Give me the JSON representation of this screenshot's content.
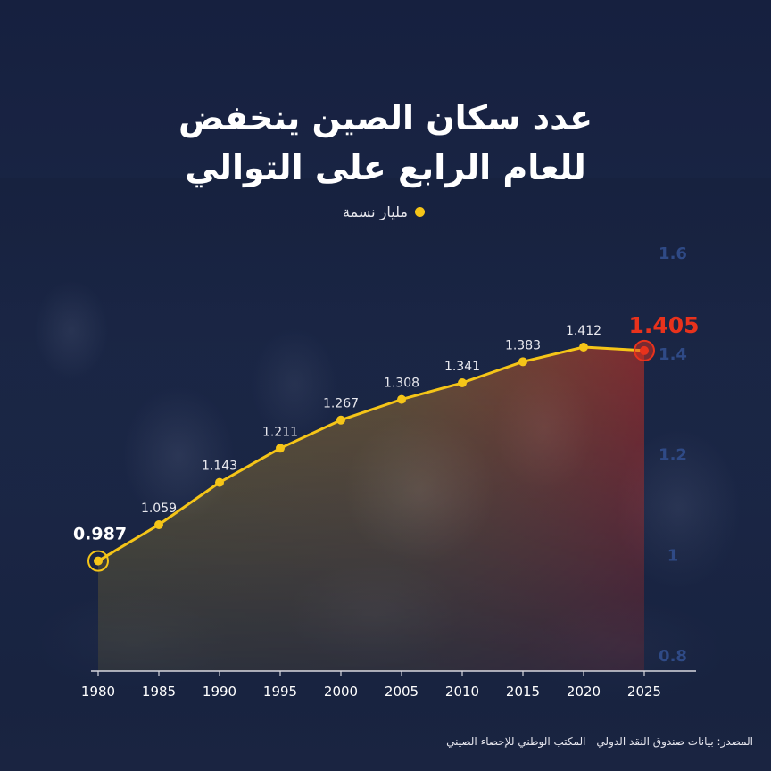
{
  "title_line1": "عدد سكان الصين ينخفض",
  "title_line2": "للعام الرابع على التوالي",
  "legend_label": "مليار نسمة",
  "source": "المصدر: بيانات صندوق النقد الدولي - المكتب الوطني للإحصاء الصيني",
  "colors": {
    "background": "#1a2543",
    "line": "#f5c518",
    "highlight": "#e8321c",
    "y_tick": "#2f4a86"
  },
  "chart_data": {
    "type": "area",
    "x": [
      1980,
      1985,
      1990,
      1995,
      2000,
      2005,
      2010,
      2015,
      2020,
      2025
    ],
    "values": [
      0.987,
      1.059,
      1.143,
      1.211,
      1.267,
      1.308,
      1.341,
      1.383,
      1.412,
      1.405
    ],
    "data_labels": [
      "0.987",
      "1.059",
      "1.143",
      "1.211",
      "1.267",
      "1.308",
      "1.341",
      "1.383",
      "1.412",
      "1.405"
    ],
    "x_tick_labels": [
      "1980",
      "1985",
      "1990",
      "1995",
      "2000",
      "2005",
      "2010",
      "2015",
      "2020",
      "2025"
    ],
    "y_tick_labels": [
      "0.8",
      "1",
      "1.2",
      "1.4",
      "1.6"
    ],
    "y_ticks": [
      0.8,
      1.0,
      1.2,
      1.4,
      1.6
    ],
    "ylim": [
      0.8,
      1.6
    ],
    "xlim": [
      1980,
      2025
    ],
    "y_axis_side": "right",
    "grid": false,
    "legend_position": "top-center",
    "title": "عدد سكان الصين ينخفض للعام الرابع على التوالي"
  }
}
